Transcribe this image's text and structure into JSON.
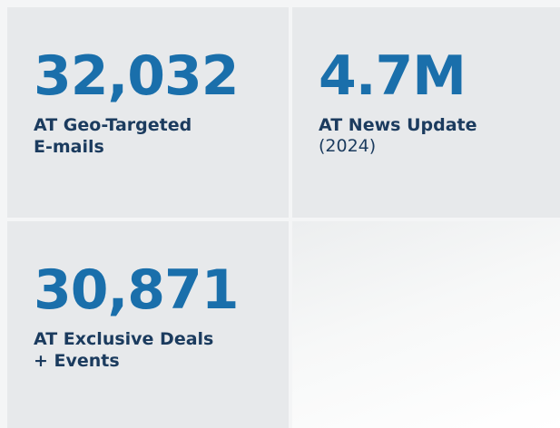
{
  "tiles": [
    {
      "value": "32,032",
      "label_lines": [
        "AT Geo-Targeted",
        "E-mails"
      ]
    },
    {
      "value": "4.7M",
      "label_lines": [
        "AT News Update"
      ],
      "note": "(2024)"
    },
    {
      "value": "30,871",
      "label_lines": [
        "AT Exclusive Deals",
        "+ Events"
      ]
    }
  ]
}
